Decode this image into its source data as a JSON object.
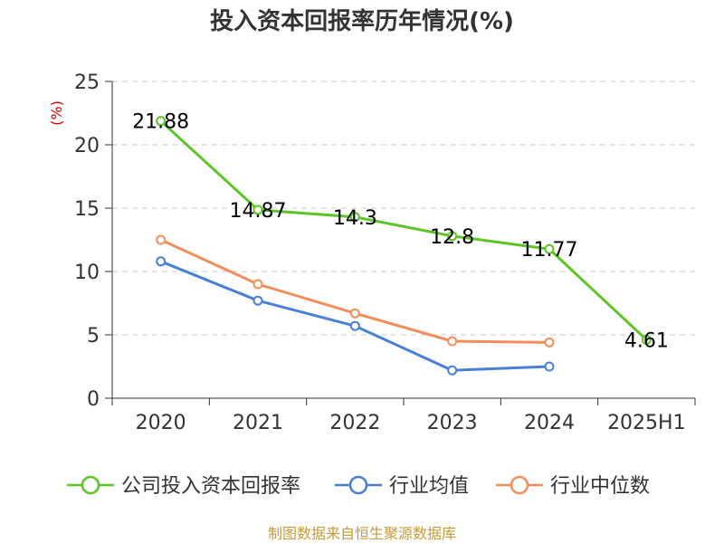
{
  "chart_data": {
    "type": "line",
    "title": "投入资本回报率历年情况(%)",
    "ylabel": "(%)",
    "ylim": [
      0,
      25
    ],
    "yticks": [
      0,
      5,
      10,
      15,
      20,
      25
    ],
    "categories": [
      "2020",
      "2021",
      "2022",
      "2023",
      "2024",
      "2025H1"
    ],
    "grid": true,
    "legend_position": "bottom",
    "series": [
      {
        "name": "公司投入资本回报率",
        "color": "#5cc427",
        "values": [
          21.88,
          14.87,
          14.3,
          12.8,
          11.77,
          4.61
        ],
        "labels": [
          "21.88",
          "14.87",
          "14.3",
          "12.8",
          "11.77",
          "4.61"
        ]
      },
      {
        "name": "行业均值",
        "color": "#4a7fd8",
        "values": [
          10.8,
          7.7,
          5.7,
          2.2,
          2.5,
          null
        ]
      },
      {
        "name": "行业中位数",
        "color": "#f28e5b",
        "values": [
          12.5,
          9.0,
          6.7,
          4.5,
          4.4,
          null
        ]
      }
    ]
  },
  "source": "制图数据来自恒生聚源数据库"
}
